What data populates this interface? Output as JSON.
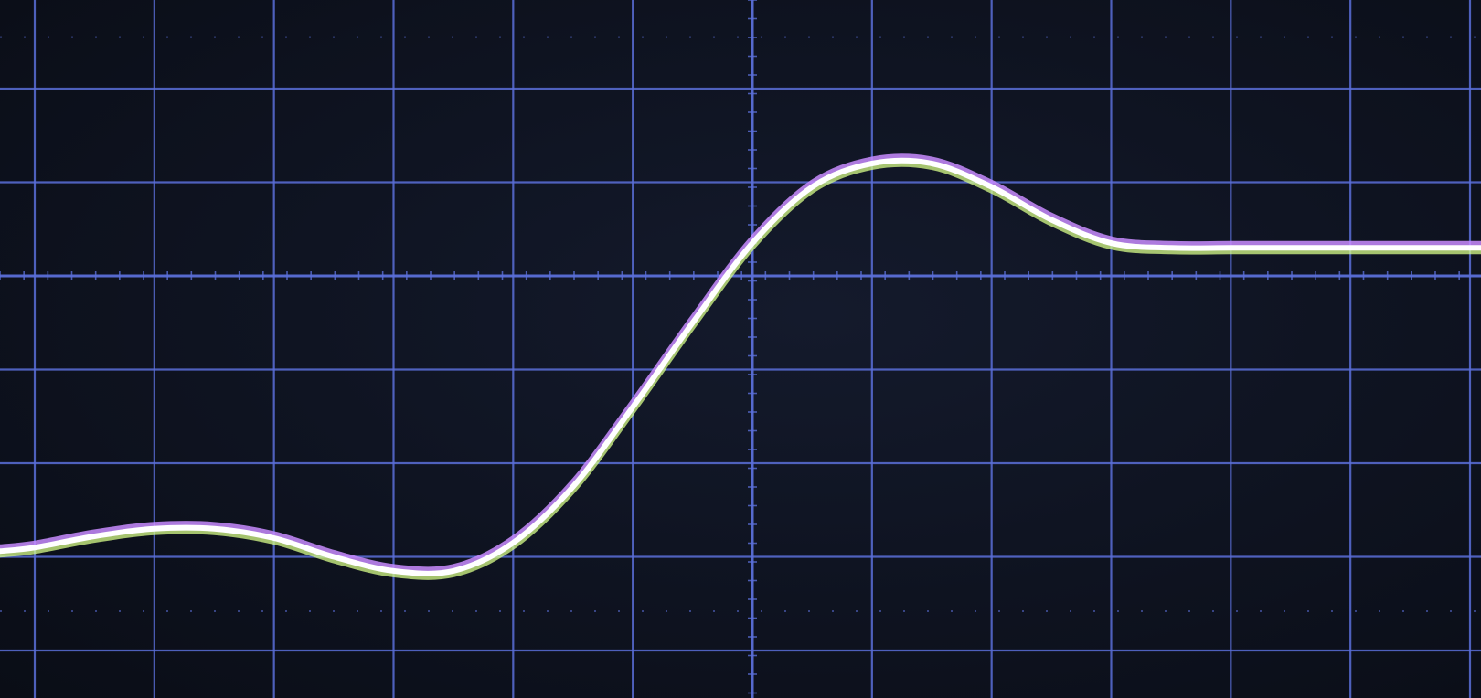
{
  "chart_data": {
    "type": "line",
    "title": "",
    "xlabel": "",
    "ylabel": "",
    "grid": true,
    "grid_color": "#5b6fd8",
    "background_color": "#111626",
    "colors": {
      "trace": "#ffffff",
      "trace_glow_upper": "#c98cff",
      "trace_glow_lower": "#d8ff8a"
    },
    "grid_divisions": {
      "x_major": 12,
      "y_major": 6
    },
    "xlim": [
      0,
      12
    ],
    "ylim": [
      0,
      6
    ],
    "series": [
      {
        "x": [
          0,
          0.5,
          1.0,
          1.5,
          2.0,
          2.5,
          3.0,
          3.5,
          4.0,
          4.5,
          5.0,
          5.5,
          6.0,
          6.5,
          7.0,
          7.5,
          8.0,
          8.5,
          9.0,
          9.5,
          10.0,
          10.5,
          11.0,
          11.5,
          12.0
        ],
        "y": [
          1.1,
          1.22,
          1.3,
          1.3,
          1.2,
          1.0,
          0.85,
          0.85,
          1.15,
          1.75,
          2.6,
          3.5,
          4.35,
          4.95,
          5.2,
          5.2,
          4.95,
          4.6,
          4.35,
          4.3,
          4.3,
          4.3,
          4.3,
          4.3,
          4.3
        ]
      }
    ]
  }
}
